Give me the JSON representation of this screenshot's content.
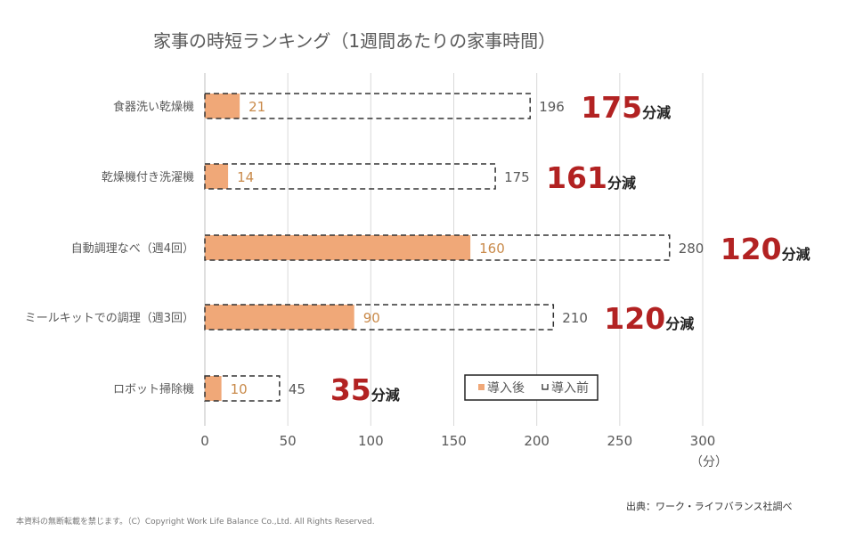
{
  "chart_data": {
    "type": "bar",
    "orientation": "horizontal",
    "title": "家事の時短ランキング（1週間あたりの家事時間）",
    "xlabel": "",
    "unit_label": "（分）",
    "ylabel": "",
    "xlim": [
      0,
      300
    ],
    "xticks": [
      0,
      50,
      100,
      150,
      200,
      250,
      300
    ],
    "xtick_labels": [
      "0",
      "50",
      "100",
      "150",
      "200",
      "250",
      "300"
    ],
    "grid": true,
    "categories": [
      "食器洗い乾燥機",
      "乾燥機付き洗濯機",
      "自動調理なべ（週4回）",
      "ミールキットでの調理（週3回）",
      "ロボット掃除機"
    ],
    "series": [
      {
        "name": "導入後",
        "values": [
          21,
          14,
          160,
          90,
          10
        ],
        "color": "#f0a878",
        "style": "solid"
      },
      {
        "name": "導入前",
        "values": [
          196,
          175,
          280,
          210,
          45
        ],
        "color": "#333333",
        "style": "dashed-outline"
      }
    ],
    "annotations": [
      {
        "value": "175",
        "unit": "分減"
      },
      {
        "value": "161",
        "unit": "分減"
      },
      {
        "value": "120",
        "unit": "分減"
      },
      {
        "value": "120",
        "unit": "分減"
      },
      {
        "value": "35",
        "unit": "分減"
      }
    ],
    "legend": {
      "position": "bottom-right-inside",
      "entries": [
        "導入後",
        "導入前"
      ]
    }
  },
  "footer": {
    "copyright": "本資料の無断転載を禁じます。（C）Copyright  Work Life Balance Co.,Ltd. All Rights Reserved.",
    "source": "出典：ワーク・ライフバランス社調べ"
  }
}
